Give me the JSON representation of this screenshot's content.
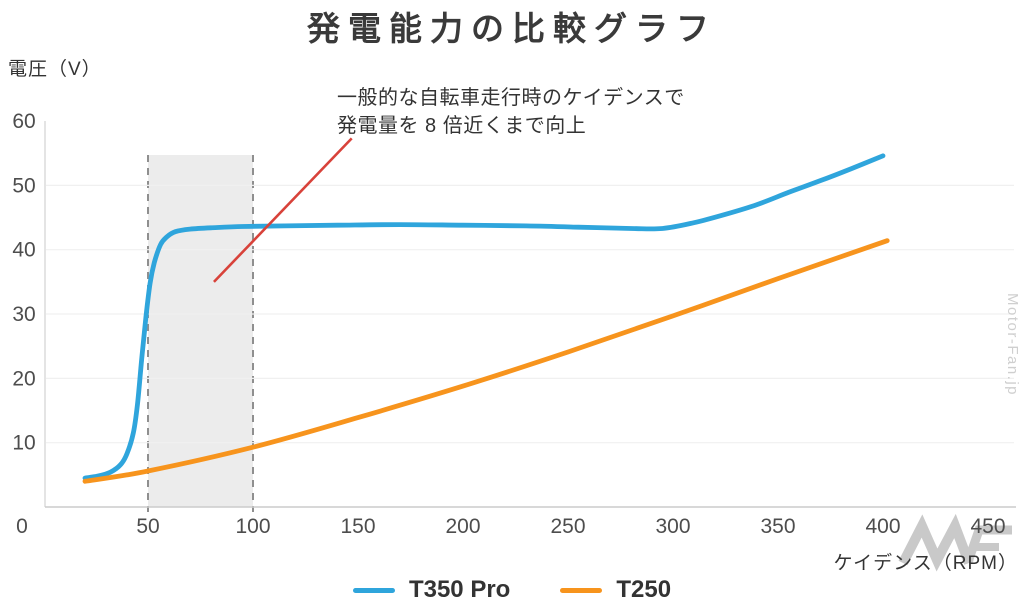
{
  "page": {
    "title": "発電能力の比較グラフ"
  },
  "axes": {
    "y_title": "電圧（V）",
    "x_title": "ケイデンス（RPM）"
  },
  "annotation": {
    "line1": "一般的な自転車走行時のケイデンスで",
    "line2": "発電量を 8 倍近くまで向上"
  },
  "legend": {
    "items": [
      {
        "label": "T350 Pro",
        "color": "#2fa5dc"
      },
      {
        "label": "T250",
        "color": "#f7941d"
      }
    ]
  },
  "watermark": {
    "side_text": "Motor-Fan.jp"
  },
  "chart_data": {
    "type": "line",
    "title": "発電能力の比較グラフ",
    "xlabel": "ケイデンス（RPM）",
    "ylabel": "電圧（V）",
    "xlim": [
      0,
      450
    ],
    "ylim": [
      0,
      60
    ],
    "x_ticks": [
      0,
      50,
      100,
      150,
      200,
      250,
      300,
      350,
      400,
      450
    ],
    "y_ticks": [
      0,
      10,
      20,
      30,
      40,
      50,
      60
    ],
    "grid": "horizontal-light",
    "legend_position": "bottom-center",
    "highlight_band": {
      "x_start": 50,
      "x_end": 100,
      "fill": "#ececec",
      "border_style": "dashed",
      "border_color": "#8f8f8f"
    },
    "annotation_pointer": {
      "color": "#d8423a",
      "from": [
        147,
        57.3
      ],
      "to": [
        81.4,
        35
      ]
    },
    "series": [
      {
        "name": "T350 Pro",
        "color": "#2fa5dc",
        "points": [
          [
            20,
            4.5
          ],
          [
            26,
            4.8
          ],
          [
            32,
            5.4
          ],
          [
            37,
            6.6
          ],
          [
            40,
            8.3
          ],
          [
            43,
            11.5
          ],
          [
            45,
            16
          ],
          [
            47,
            23
          ],
          [
            49,
            29.5
          ],
          [
            51,
            34.8
          ],
          [
            53,
            38
          ],
          [
            56,
            40.8
          ],
          [
            59,
            42
          ],
          [
            63,
            42.8
          ],
          [
            70,
            43.2
          ],
          [
            80,
            43.4
          ],
          [
            95,
            43.6
          ],
          [
            115,
            43.7
          ],
          [
            140,
            43.8
          ],
          [
            170,
            43.9
          ],
          [
            200,
            43.8
          ],
          [
            230,
            43.7
          ],
          [
            255,
            43.5
          ],
          [
            280,
            43.3
          ],
          [
            295,
            43.3
          ],
          [
            310,
            44.2
          ],
          [
            325,
            45.5
          ],
          [
            340,
            47
          ],
          [
            355,
            48.9
          ],
          [
            370,
            50.7
          ],
          [
            385,
            52.6
          ],
          [
            400,
            54.6
          ]
        ]
      },
      {
        "name": "T250",
        "color": "#f7941d",
        "points": [
          [
            20,
            4
          ],
          [
            50,
            5.6
          ],
          [
            100,
            9.3
          ],
          [
            150,
            13.9
          ],
          [
            200,
            18.8
          ],
          [
            250,
            24.1
          ],
          [
            300,
            29.7
          ],
          [
            350,
            35.5
          ],
          [
            402,
            41.4
          ]
        ]
      }
    ]
  }
}
